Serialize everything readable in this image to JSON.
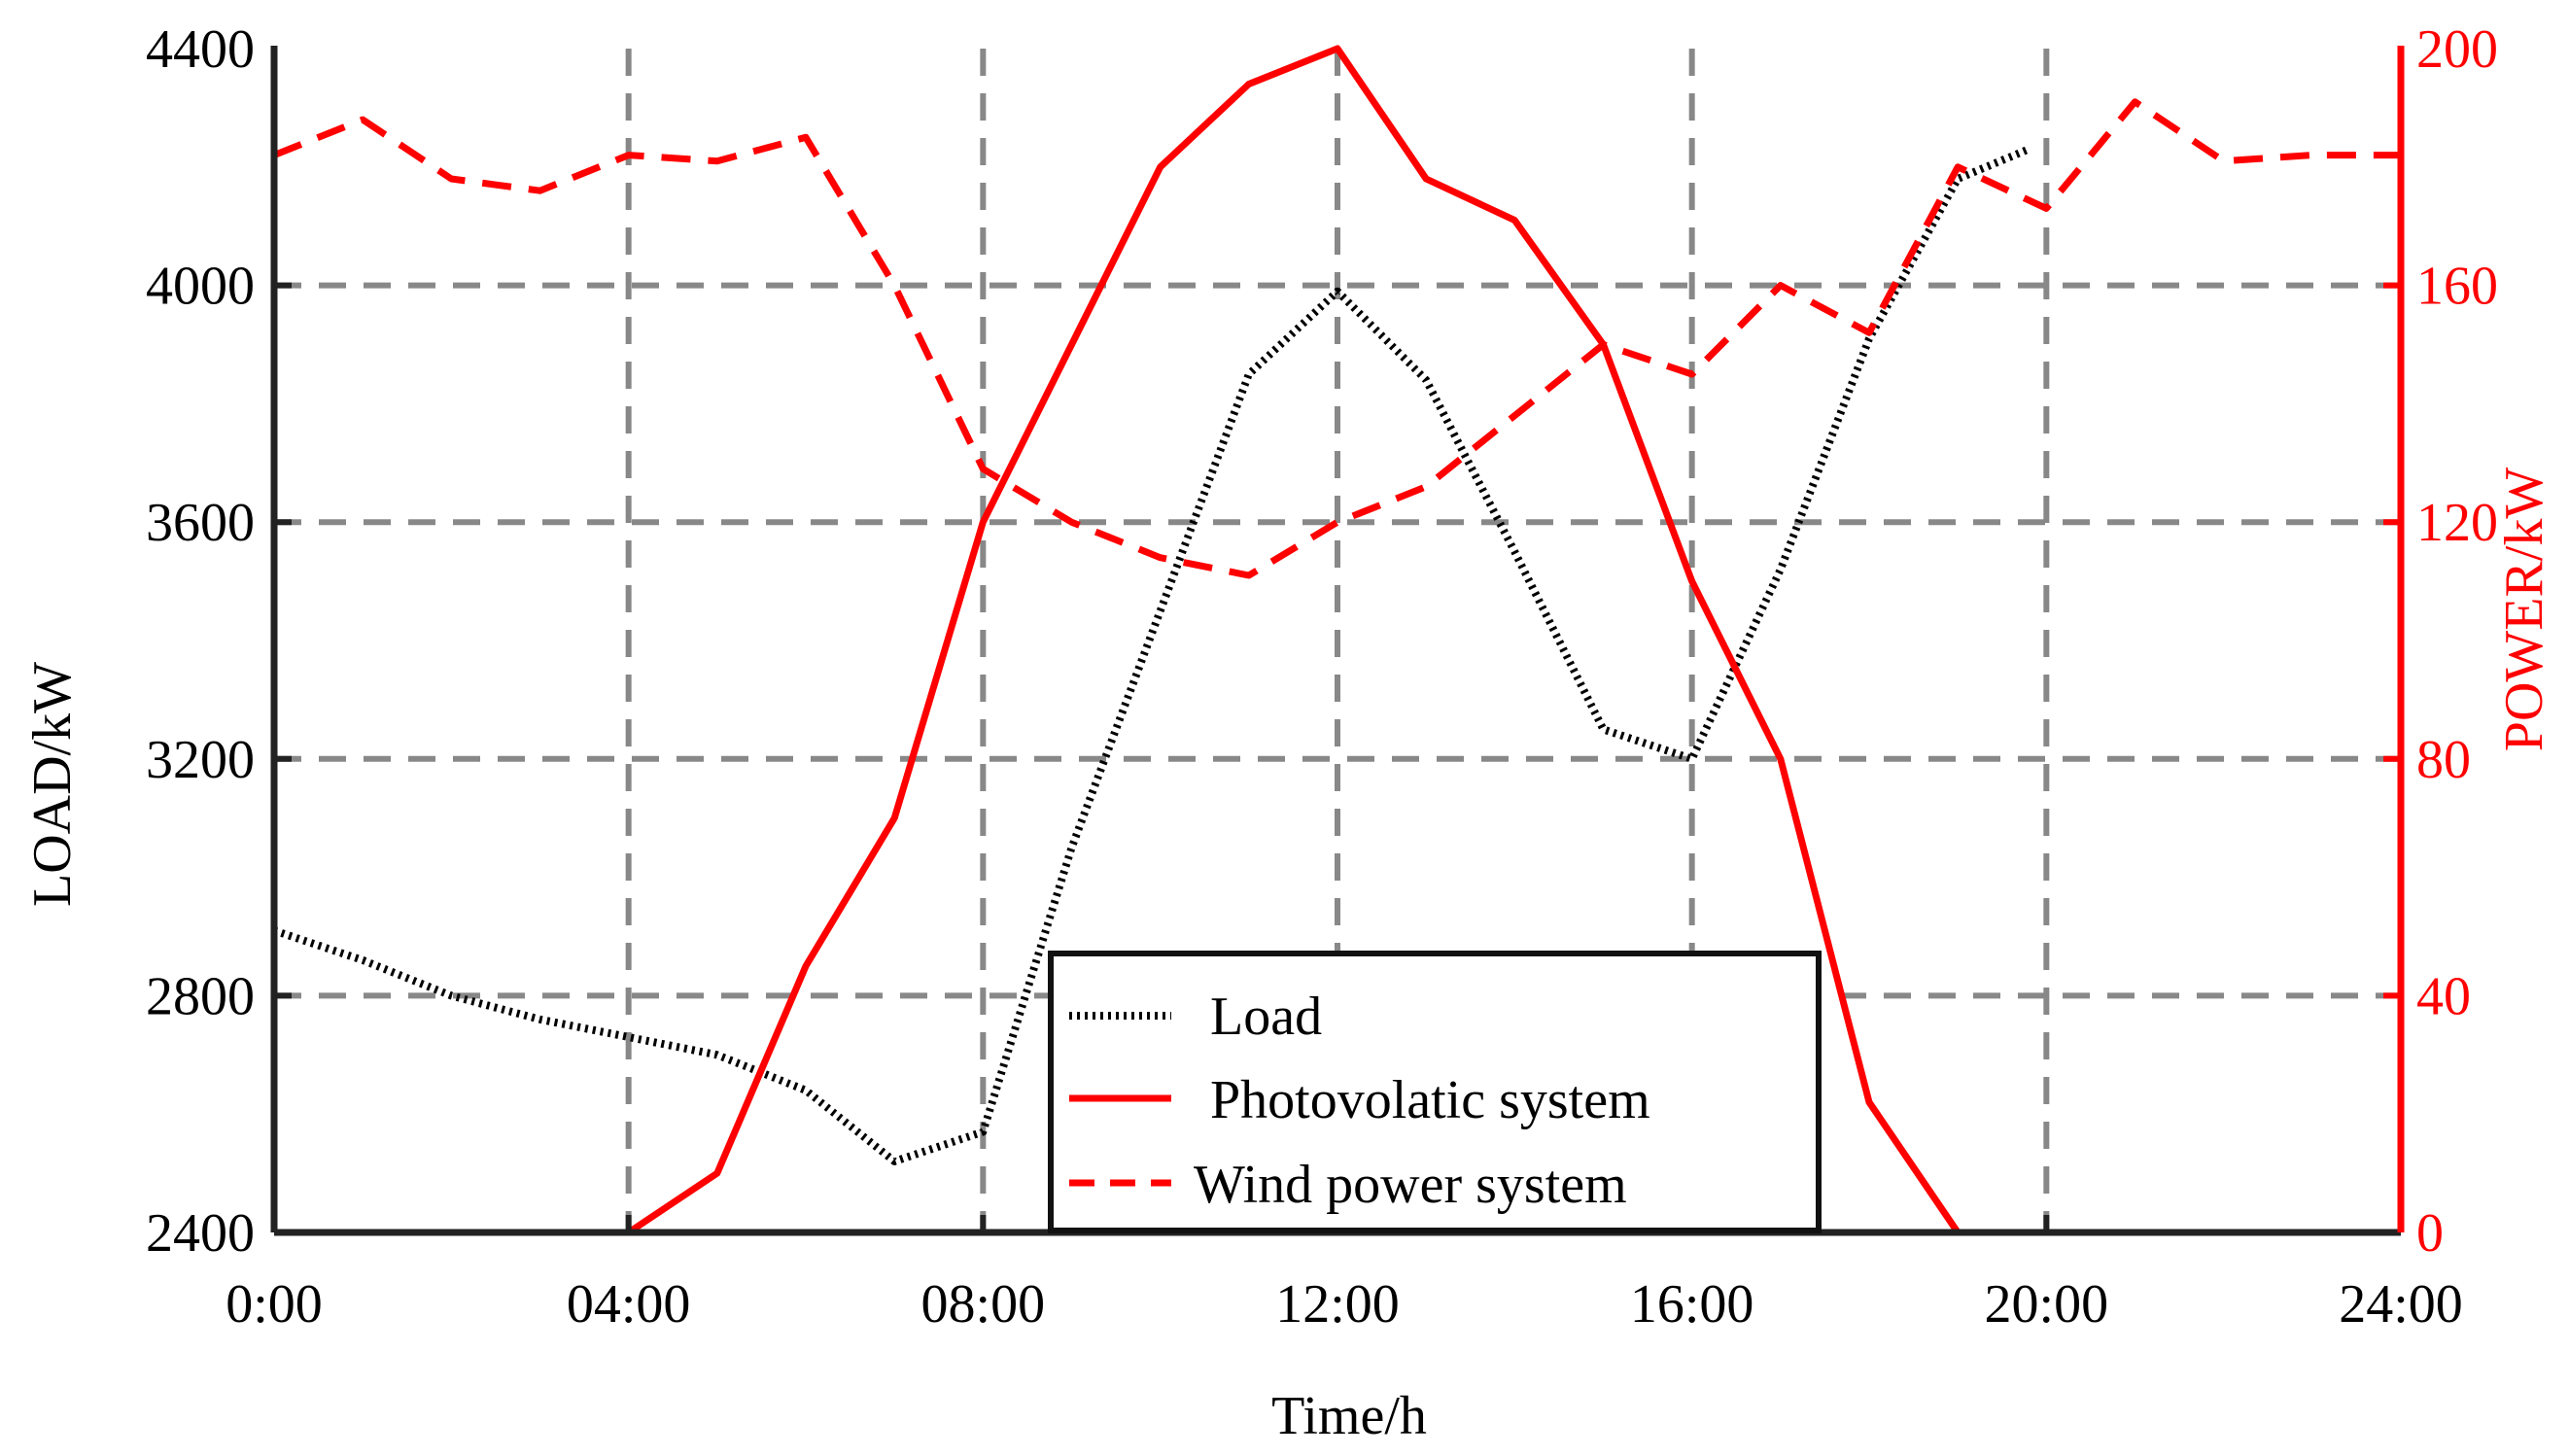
{
  "chart_data": {
    "type": "line",
    "title": "",
    "xlabel": "Time/h",
    "ylabel_left": "LOAD/kW",
    "ylabel_right": "POWER/kW",
    "x_ticks": [
      "0:00",
      "04:00",
      "08:00",
      "12:00",
      "16:00",
      "20:00",
      "24:00"
    ],
    "xlim": [
      0,
      24
    ],
    "ylim_left": [
      2400,
      4400
    ],
    "yticks_left": [
      "2400",
      "2800",
      "3200",
      "3600",
      "4000",
      "4400"
    ],
    "ylim_right": [
      0,
      200
    ],
    "yticks_right": [
      "0",
      "40",
      "80",
      "120",
      "160",
      "200"
    ],
    "grid": true,
    "legend_position": "bottom-center",
    "series": [
      {
        "name": "Load",
        "axis": "left",
        "style": "dotted",
        "color": "#000000",
        "x": [
          0,
          1,
          2,
          3,
          4,
          5,
          6,
          7,
          8,
          9,
          10,
          11,
          12,
          13,
          14,
          15,
          16,
          17,
          18,
          19,
          19.8
        ],
        "y": [
          2910,
          2860,
          2800,
          2760,
          2730,
          2700,
          2640,
          2520,
          2570,
          3050,
          3450,
          3850,
          3990,
          3840,
          3550,
          3250,
          3200,
          3520,
          3910,
          4180,
          4230
        ]
      },
      {
        "name": "Photovolatic system",
        "axis": "right",
        "style": "solid",
        "color": "#ff0000",
        "x": [
          1,
          2,
          3,
          4,
          5,
          6,
          7,
          8,
          9,
          10,
          11,
          12,
          13,
          14,
          15,
          16,
          17,
          18,
          19,
          20,
          21,
          22
        ],
        "y": [
          0,
          0,
          0,
          0,
          10,
          45,
          70,
          120,
          150,
          180,
          194,
          200,
          178,
          171,
          150,
          110,
          80,
          22,
          0,
          0,
          0,
          0
        ]
      },
      {
        "name": "Wind power system",
        "axis": "right",
        "style": "dashed",
        "color": "#ff0000",
        "x": [
          0,
          1,
          2,
          3,
          4,
          5,
          6,
          7,
          8,
          9,
          10,
          11,
          12,
          13,
          14,
          15,
          16,
          17,
          18,
          19,
          20,
          21,
          22,
          23,
          24
        ],
        "y": [
          182,
          188,
          178,
          176,
          182,
          181,
          185,
          160,
          129,
          120,
          114,
          111,
          120,
          126,
          138,
          150,
          145,
          160,
          152,
          180,
          173,
          191,
          181,
          182,
          182
        ]
      }
    ]
  }
}
